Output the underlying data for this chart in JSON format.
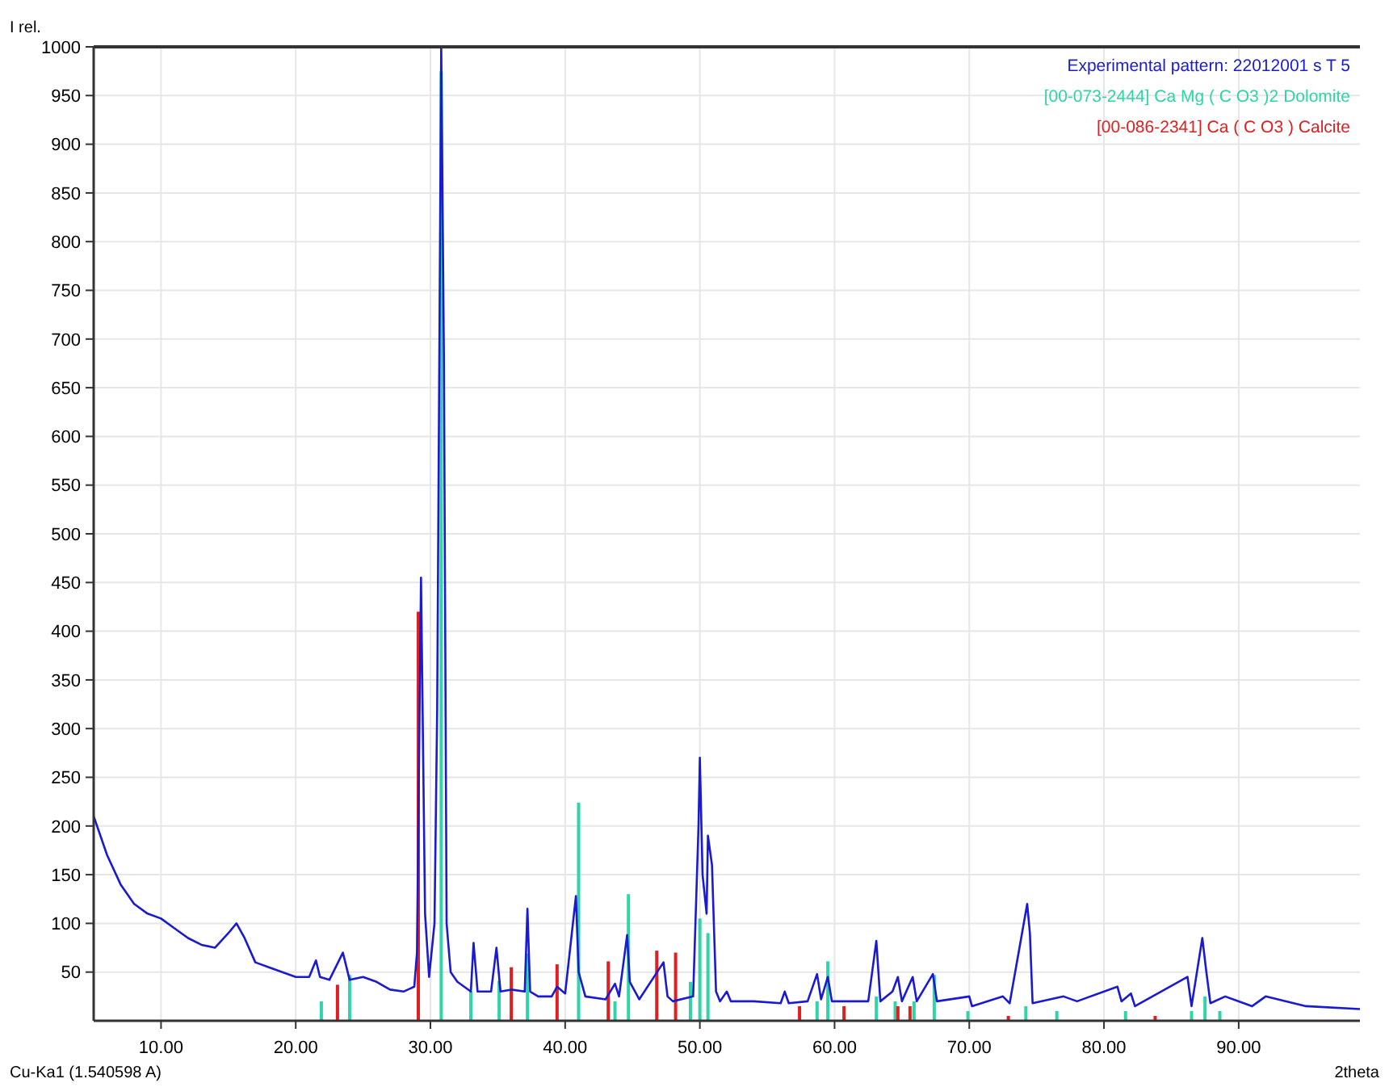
{
  "chart_data": {
    "type": "line",
    "ylabel": "I rel.",
    "xlabel": "2theta",
    "annotations": [
      "Cu-Ka1 (1.540598 A)"
    ],
    "xlim": [
      5,
      99
    ],
    "ylim": [
      0,
      1000
    ],
    "xticks": [
      {
        "value": 10,
        "label": "10.00"
      },
      {
        "value": 20,
        "label": "20.00"
      },
      {
        "value": 30,
        "label": "30.00"
      },
      {
        "value": 40,
        "label": "40.00"
      },
      {
        "value": 50,
        "label": "50.00"
      },
      {
        "value": 60,
        "label": "60.00"
      },
      {
        "value": 70,
        "label": "70.00"
      },
      {
        "value": 80,
        "label": "80.00"
      },
      {
        "value": 90,
        "label": "90.00"
      }
    ],
    "yticks": [
      50,
      100,
      150,
      200,
      250,
      300,
      350,
      400,
      450,
      500,
      550,
      600,
      650,
      700,
      750,
      800,
      850,
      900,
      950,
      1000
    ],
    "grid": true,
    "legend": "top right",
    "series": [
      {
        "name": "Experimental pattern: 22012001 s T 5",
        "color": "#1a1ad0",
        "x": [
          5,
          6,
          7,
          8,
          9,
          10,
          11,
          12,
          13,
          14,
          15,
          15.6,
          16.2,
          17,
          18,
          19,
          20,
          21,
          21.5,
          21.8,
          22.5,
          23.5,
          24,
          25,
          26,
          27,
          28,
          28.8,
          29,
          29.3,
          29.6,
          29.9,
          30.3,
          30.5,
          30.8,
          31,
          31.2,
          31.5,
          32,
          33,
          33.2,
          33.5,
          34.5,
          34.9,
          35.2,
          36,
          37,
          37.2,
          37.4,
          38,
          39,
          39.4,
          40,
          40.8,
          41,
          41.5,
          43,
          43.7,
          44,
          44.6,
          44.8,
          45.5,
          47.3,
          47.6,
          48,
          49.5,
          49.9,
          50,
          50.2,
          50.5,
          50.6,
          50.9,
          51.2,
          51.5,
          52,
          52.3,
          54,
          56,
          56.3,
          56.6,
          58,
          58.7,
          59,
          59.5,
          59.8,
          62.5,
          63.1,
          63.4,
          64.3,
          64.7,
          65,
          65.8,
          66.1,
          67.3,
          67.6,
          70,
          70.2,
          72.5,
          73,
          74.3,
          74.5,
          74.7,
          77,
          78,
          81,
          81.3,
          82,
          82.3,
          86.2,
          86.5,
          87.3,
          87.6,
          87.9,
          89,
          91,
          92,
          95,
          99
        ],
        "values": [
          210,
          170,
          140,
          120,
          110,
          105,
          95,
          85,
          78,
          75,
          90,
          100,
          85,
          60,
          55,
          50,
          45,
          45,
          62,
          45,
          42,
          70,
          42,
          45,
          40,
          32,
          30,
          35,
          70,
          455,
          110,
          45,
          100,
          320,
          1000,
          680,
          100,
          50,
          40,
          30,
          80,
          30,
          30,
          75,
          30,
          32,
          30,
          115,
          30,
          25,
          25,
          35,
          28,
          128,
          50,
          25,
          22,
          38,
          25,
          88,
          40,
          22,
          60,
          25,
          20,
          25,
          200,
          270,
          150,
          110,
          190,
          160,
          30,
          20,
          30,
          20,
          20,
          18,
          30,
          18,
          20,
          48,
          22,
          45,
          20,
          20,
          82,
          20,
          30,
          45,
          20,
          45,
          20,
          48,
          20,
          25,
          15,
          25,
          18,
          120,
          90,
          18,
          25,
          20,
          35,
          20,
          28,
          15,
          45,
          15,
          85,
          50,
          18,
          25,
          15,
          25,
          15,
          12
        ]
      },
      {
        "name": "[00-073-2444] Ca Mg ( C O3 )2  Dolomite",
        "color": "#2fd4a8",
        "type": "bar",
        "x": [
          21.9,
          24,
          30.8,
          33,
          35.1,
          37.2,
          41,
          43.7,
          44.7,
          49.3,
          50,
          50.6,
          58.7,
          59.5,
          63.1,
          64.5,
          65.9,
          67.4,
          69.9,
          74.2,
          76.5,
          81.6,
          86.5,
          87.5,
          88.6
        ],
        "values": [
          20,
          47,
          975,
          30,
          41,
          69,
          224,
          20,
          130,
          40,
          105,
          90,
          20,
          61,
          25,
          20,
          20,
          47,
          10,
          15,
          10,
          10,
          10,
          25,
          10
        ]
      },
      {
        "name": "[00-086-2341] Ca ( C O3 )  Calcite",
        "color": "#e02020",
        "type": "bar",
        "x": [
          23.1,
          29.1,
          36,
          39.4,
          43.2,
          46.8,
          48.2,
          57.4,
          60.7,
          64.7,
          65.6,
          72.9,
          83.8
        ],
        "values": [
          37,
          420,
          55,
          58,
          61,
          72,
          70,
          15,
          15,
          15,
          15,
          5,
          5
        ]
      }
    ]
  }
}
